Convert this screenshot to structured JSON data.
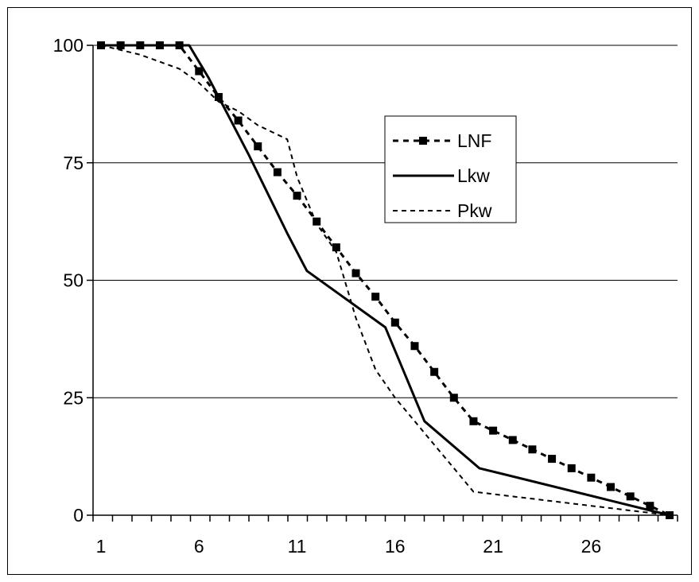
{
  "chart_data": {
    "type": "line",
    "title": "",
    "xlabel": "",
    "ylabel": "",
    "x": [
      1,
      2,
      3,
      4,
      5,
      6,
      7,
      8,
      9,
      10,
      11,
      12,
      13,
      14,
      15,
      16,
      17,
      18,
      19,
      20,
      21,
      22,
      23,
      24,
      25,
      26,
      27,
      28,
      29,
      30
    ],
    "xlim": [
      1,
      30
    ],
    "ylim": [
      0,
      100
    ],
    "x_ticks": [
      1,
      6,
      11,
      16,
      21,
      26
    ],
    "y_ticks": [
      0,
      25,
      50,
      75,
      100
    ],
    "grid": "horizontal",
    "legend_position": "upper-right",
    "series": [
      {
        "name": "LNF",
        "style": "dashed-with-square-markers",
        "values": [
          100,
          100,
          100,
          100,
          100,
          94.5,
          89,
          84,
          78.5,
          73,
          68,
          62.5,
          57,
          51.5,
          46.5,
          41,
          36,
          30.5,
          25,
          20,
          18,
          16,
          14,
          12,
          10,
          8,
          6,
          4,
          2,
          0
        ]
      },
      {
        "name": "Lkw",
        "style": "solid",
        "values": [
          100,
          100,
          100,
          100,
          100,
          93,
          85,
          77,
          68.5,
          60,
          52,
          40,
          30,
          20,
          10,
          0
        ],
        "x": [
          1,
          2,
          3,
          4,
          5.5,
          6.5,
          7.5,
          8.5,
          9.5,
          10.5,
          11.5,
          15.5,
          16.5,
          17.5,
          20.3,
          30
        ]
      },
      {
        "name": "Pkw",
        "style": "dotted",
        "x": [
          1,
          2,
          3,
          4,
          5,
          6,
          7,
          8,
          9,
          10,
          10.5,
          11,
          12,
          13,
          14,
          15,
          16,
          17,
          18,
          19,
          20,
          21,
          22,
          23,
          24,
          25,
          26,
          27,
          28,
          29,
          30
        ],
        "values": [
          100,
          99,
          98,
          96.5,
          95,
          92,
          88,
          86,
          83,
          81,
          80,
          72,
          62,
          56,
          42,
          31,
          25,
          20,
          15,
          10,
          5,
          4.5,
          4,
          3.5,
          3,
          2.5,
          2,
          1.5,
          1,
          0.5,
          0
        ]
      }
    ],
    "colors": {
      "line": "#000000",
      "grid": "#000000",
      "background": "#ffffff"
    }
  }
}
